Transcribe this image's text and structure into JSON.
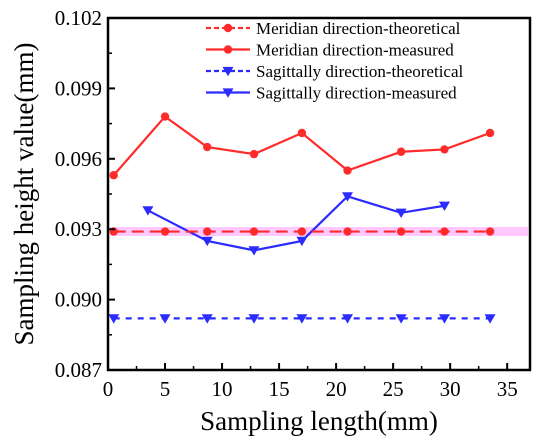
{
  "chart_data": {
    "type": "line",
    "xlabel": "Sampling length(mm)",
    "ylabel": "Sampling height value(mm)",
    "xlim": [
      0,
      37
    ],
    "ylim": [
      0.087,
      0.102
    ],
    "xticks": [
      "0",
      "5",
      "10",
      "15",
      "20",
      "25",
      "30",
      "35"
    ],
    "xtick_values": [
      0,
      5,
      10,
      15,
      20,
      25,
      30,
      35
    ],
    "yticks": [
      "0.087",
      "0.090",
      "0.093",
      "0.096",
      "0.099",
      "0.102"
    ],
    "ytick_values": [
      0.087,
      0.09,
      0.093,
      0.096,
      0.099,
      0.102
    ],
    "legend_position": "top-right",
    "grid": false,
    "reference_band": {
      "y": 0.0929,
      "color": "#ffc8ff"
    },
    "series": [
      {
        "name": "Meridian direction-theoretical",
        "color": "#ff2b2b",
        "style": "dashed",
        "marker": "circle",
        "x": [
          0.5,
          5,
          8.7,
          12.8,
          17,
          21,
          25.7,
          29.5,
          33.5
        ],
        "y": [
          0.0929,
          0.0929,
          0.0929,
          0.0929,
          0.0929,
          0.0929,
          0.0929,
          0.0929,
          0.0929
        ]
      },
      {
        "name": "Meridian direction-measured",
        "color": "#ff2b2b",
        "style": "solid",
        "marker": "circle",
        "x": [
          0.5,
          5,
          8.7,
          12.8,
          17,
          21,
          25.7,
          29.5,
          33.5
        ],
        "y": [
          0.0953,
          0.0978,
          0.0965,
          0.0962,
          0.0971,
          0.0955,
          0.0963,
          0.0964,
          0.0971
        ]
      },
      {
        "name": "Sagittally direction-theoretical",
        "color": "#2b2bff",
        "style": "dashed",
        "marker": "triangle-down",
        "x": [
          0.5,
          5,
          8.7,
          12.8,
          17,
          21,
          25.7,
          29.5,
          33.5
        ],
        "y": [
          0.0892,
          0.0892,
          0.0892,
          0.0892,
          0.0892,
          0.0892,
          0.0892,
          0.0892,
          0.0892
        ]
      },
      {
        "name": "Sagittally direction-measured",
        "color": "#2b2bff",
        "style": "solid",
        "marker": "triangle-down",
        "x": [
          3.5,
          8.7,
          12.8,
          17,
          21,
          25.7,
          29.5
        ],
        "y": [
          0.0938,
          0.0925,
          0.0921,
          0.0925,
          0.0944,
          0.0937,
          0.094
        ]
      }
    ]
  }
}
